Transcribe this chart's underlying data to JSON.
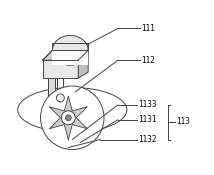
{
  "bg_color": "#ffffff",
  "line_color": "#444444",
  "lw": 0.7,
  "font_size": 5.5,
  "figsize": [
    2.14,
    1.75
  ],
  "dpi": 100
}
